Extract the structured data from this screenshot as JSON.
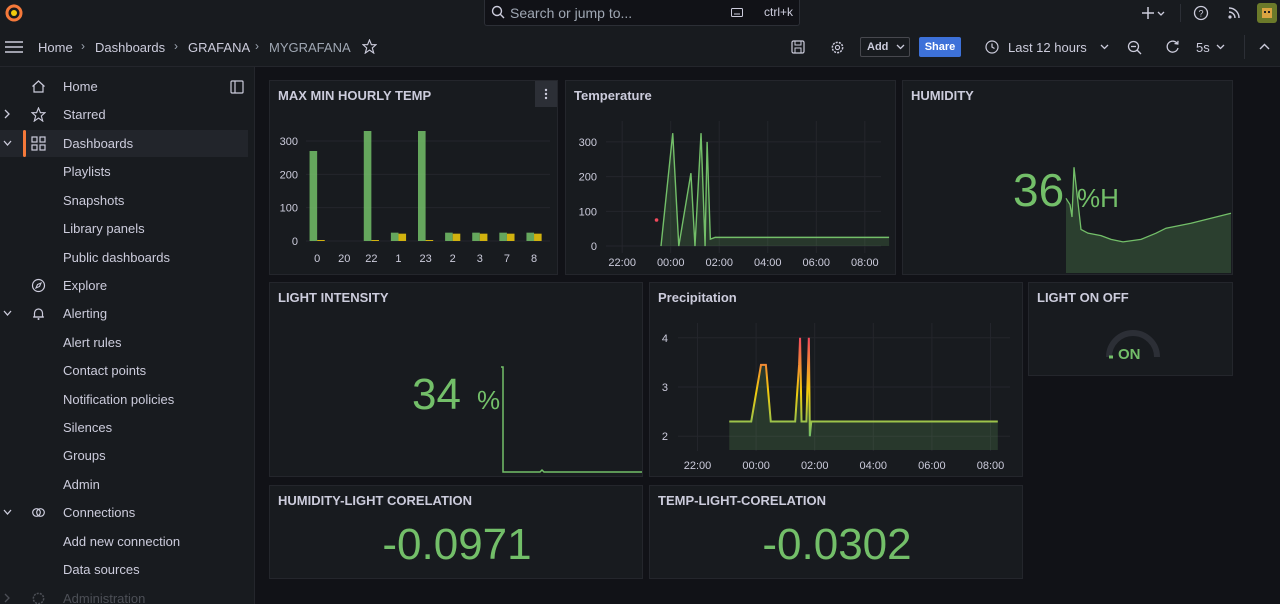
{
  "topbar": {
    "search_placeholder": "Search or jump to...",
    "shortcut": "ctrl+k"
  },
  "breadcrumbs": [
    "Home",
    "Dashboards",
    "GRAFANA",
    "MYGRAFANA"
  ],
  "toolbar": {
    "add_label": "Add",
    "share_label": "Share",
    "time_range": "Last 12 hours",
    "refresh_interval": "5s"
  },
  "sidebar": {
    "items": [
      {
        "label": "Home",
        "icon": "home-icon",
        "level": 0
      },
      {
        "label": "Starred",
        "icon": "star-icon",
        "level": 0,
        "chevron": "right"
      },
      {
        "label": "Dashboards",
        "icon": "apps-icon",
        "level": 0,
        "chevron": "down",
        "active": true
      },
      {
        "label": "Playlists",
        "level": 1
      },
      {
        "label": "Snapshots",
        "level": 1
      },
      {
        "label": "Library panels",
        "level": 1
      },
      {
        "label": "Public dashboards",
        "level": 1
      },
      {
        "label": "Explore",
        "icon": "compass-icon",
        "level": 0
      },
      {
        "label": "Alerting",
        "icon": "bell-icon",
        "level": 0,
        "chevron": "down"
      },
      {
        "label": "Alert rules",
        "level": 1
      },
      {
        "label": "Contact points",
        "level": 1
      },
      {
        "label": "Notification policies",
        "level": 1
      },
      {
        "label": "Silences",
        "level": 1
      },
      {
        "label": "Groups",
        "level": 1
      },
      {
        "label": "Admin",
        "level": 1
      },
      {
        "label": "Connections",
        "icon": "link-icon",
        "level": 0,
        "chevron": "down"
      },
      {
        "label": "Add new connection",
        "level": 1
      },
      {
        "label": "Data sources",
        "level": 1
      },
      {
        "label": "Administration",
        "icon": "gear-icon",
        "level": 0,
        "chevron": "right"
      }
    ]
  },
  "colors": {
    "green": "#73bf69",
    "yellow": "#f2cc0c",
    "accent": "#f5793a",
    "blue": "#3d71d9",
    "red": "#f2495c"
  },
  "panels": {
    "maxmin": {
      "title": "MAX MIN HOURLY TEMP"
    },
    "temperature": {
      "title": "Temperature"
    },
    "humidity": {
      "title": "HUMIDITY",
      "value": "36",
      "unit": "%H"
    },
    "light": {
      "title": "LIGHT INTENSITY",
      "value": "34",
      "unit": "%"
    },
    "precip": {
      "title": "Precipitation"
    },
    "lightonoff": {
      "title": "LIGHT ON OFF",
      "value": "ON"
    },
    "humlight": {
      "title": "HUMIDITY-LIGHT CORELATION",
      "value": "-0.0971"
    },
    "templight": {
      "title": "TEMP-LIGHT-CORELATION",
      "value": "-0.0302"
    }
  },
  "chart_data": [
    {
      "type": "bar",
      "categories": [
        "0",
        "20",
        "22",
        "1",
        "23",
        "2",
        "3",
        "7",
        "8"
      ],
      "series": [
        {
          "color": "#73bf69",
          "values": [
            270,
            0,
            330,
            25,
            330,
            25,
            25,
            25,
            25
          ]
        },
        {
          "color": "#f2cc0c",
          "values": [
            3,
            0,
            3,
            22,
            3,
            22,
            22,
            22,
            22
          ]
        }
      ],
      "yticks": [
        0,
        100,
        200,
        300
      ],
      "ylim": [
        0,
        360
      ]
    },
    {
      "type": "line",
      "xticks": [
        "22:00",
        "00:00",
        "02:00",
        "04:00",
        "06:00",
        "08:00"
      ],
      "yticks": [
        0,
        100,
        200,
        300
      ],
      "ylim": [
        -20,
        360
      ],
      "series": [
        {
          "color": "#73bf69",
          "points": [
            [
              "23:36",
              0
            ],
            [
              "00:05",
              325
            ],
            [
              "00:20",
              0
            ],
            [
              "00:50",
              210
            ],
            [
              "01:00",
              0
            ],
            [
              "01:15",
              325
            ],
            [
              "01:25",
              0
            ],
            [
              "01:30",
              300
            ],
            [
              "01:38",
              20
            ],
            [
              "01:50",
              25
            ],
            [
              "09:00",
              25
            ]
          ]
        },
        {
          "color": "#f2495c",
          "points": [
            [
              "23:25",
              75
            ]
          ]
        }
      ]
    },
    {
      "type": "area",
      "color": "#73bf69",
      "points": [
        [
          0,
          60
        ],
        [
          4,
          55
        ],
        [
          6,
          45
        ],
        [
          8,
          85
        ],
        [
          15,
          35
        ],
        [
          22,
          32
        ],
        [
          35,
          30
        ],
        [
          45,
          27
        ],
        [
          57,
          25
        ],
        [
          75,
          27
        ],
        [
          90,
          32
        ],
        [
          100,
          36
        ],
        [
          125,
          40
        ],
        [
          165,
          48
        ]
      ]
    },
    {
      "type": "line",
      "xticks": [
        "22:00",
        "00:00",
        "02:00",
        "04:00",
        "06:00",
        "08:00"
      ],
      "yticks": [
        2,
        3,
        4
      ],
      "ylim": [
        1.7,
        4.3
      ],
      "series": [
        {
          "color": "#73bf69",
          "points": [
            [
              "23:05",
              2.3
            ],
            [
              "23:50",
              2.3
            ],
            [
              "00:10",
              3.45
            ],
            [
              "00:20",
              3.45
            ],
            [
              "00:30",
              2.3
            ],
            [
              "01:20",
              2.3
            ],
            [
              "01:28",
              3.45
            ],
            [
              "01:30",
              4.0
            ],
            [
              "01:33",
              2.3
            ],
            [
              "01:43",
              2.3
            ],
            [
              "01:48",
              4.0
            ],
            [
              "01:50",
              2.0
            ],
            [
              "01:53",
              2.3
            ],
            [
              "08:15",
              2.3
            ]
          ]
        }
      ]
    }
  ]
}
